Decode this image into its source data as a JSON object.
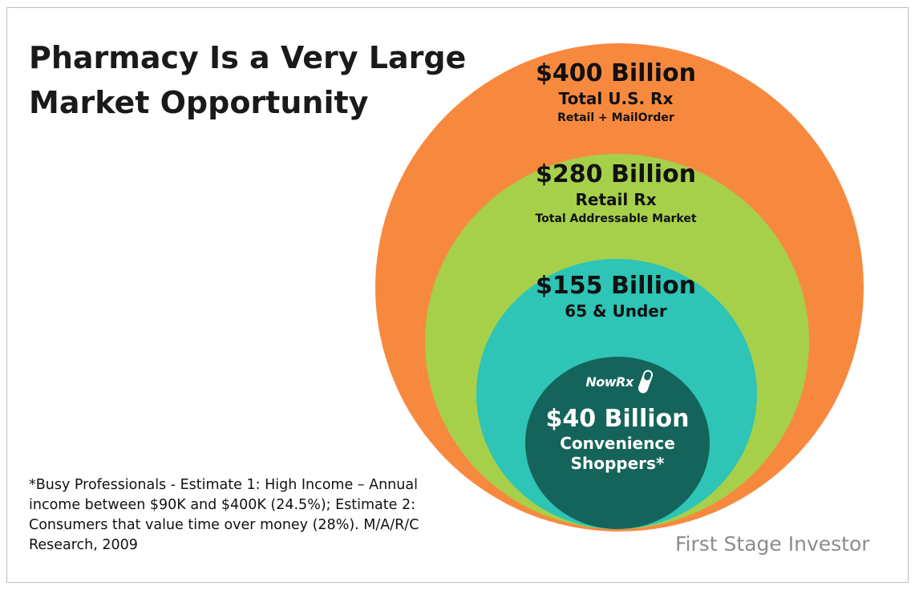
{
  "title": {
    "line1": "Pharmacy Is a Very Large",
    "line2": "Market Opportunity"
  },
  "colors": {
    "outer": "#f7893f",
    "second": "#a6d04a",
    "third": "#2ec4b6",
    "inner": "#15645b"
  },
  "circles": [
    {
      "amount": "$400 Billion",
      "label": "Total U.S. Rx",
      "sub": "Retail + MailOrder"
    },
    {
      "amount": "$280 Billion",
      "label": "Retail Rx",
      "sub": "Total Addressable Market"
    },
    {
      "amount": "$155 Billion",
      "label": "65 & Under"
    },
    {
      "amount": "$40 Billion",
      "label_line1": "Convenience",
      "label_line2": "Shoppers*"
    }
  ],
  "logo": {
    "text": "NowRx",
    "icon": "pill-icon"
  },
  "footnote": "*Busy Professionals - Estimate 1: High Income – Annual income between $90K and $400K (24.5%); Estimate 2: Consumers that value time over money (28%). M/A/R/C Research, 2009",
  "credit": "First Stage Investor"
}
